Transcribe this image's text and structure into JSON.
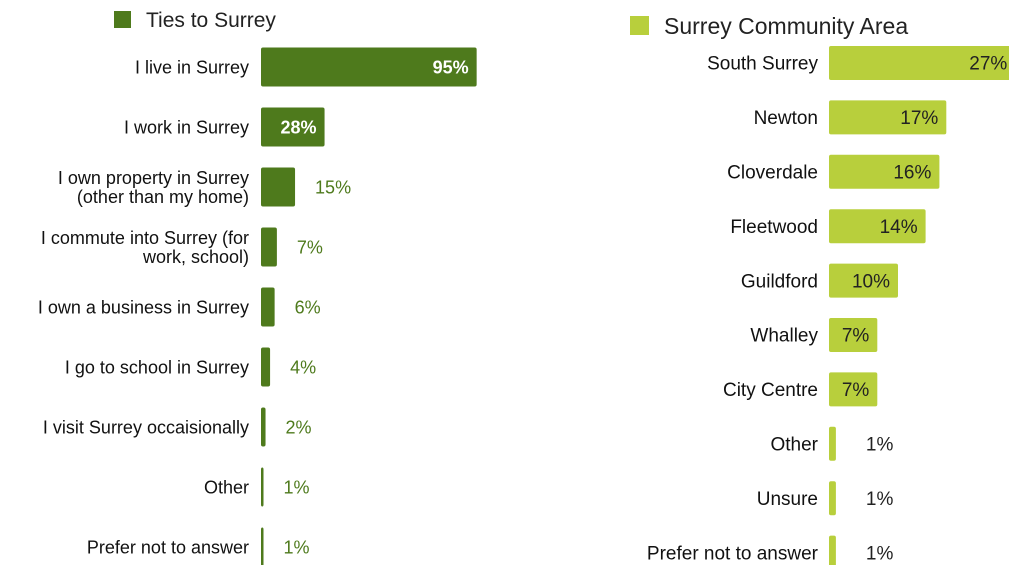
{
  "chart_data": [
    {
      "type": "bar",
      "orientation": "horizontal",
      "legend": {
        "label": "Ties to Surrey",
        "color": "#4e7a1c",
        "placement": "top"
      },
      "unit": "%",
      "xlim": [
        0,
        100
      ],
      "categories": [
        [
          "I live in Surrey"
        ],
        [
          "I work in Surrey"
        ],
        [
          "I own property in Surrey",
          "(other than my home)"
        ],
        [
          "I commute into Surrey (for",
          "work, school)"
        ],
        [
          "I own a business in Surrey"
        ],
        [
          "I go to school in Surrey"
        ],
        [
          "I visit Surrey occaisionally"
        ],
        [
          "Other"
        ],
        [
          "Prefer not to answer"
        ]
      ],
      "values": [
        95,
        28,
        15,
        7,
        6,
        4,
        2,
        1,
        1
      ],
      "data_labels": [
        "95%",
        "28%",
        "15%",
        "7%",
        "6%",
        "4%",
        "2%",
        "1%",
        "1%"
      ],
      "label_inside_color": "#ffffff",
      "label_outside_color": "#4e7a1c"
    },
    {
      "type": "bar",
      "orientation": "horizontal",
      "legend": {
        "label": "Surrey Community Area",
        "color": "#b8cf3c",
        "placement": "top"
      },
      "unit": "%",
      "xlim": [
        0,
        100
      ],
      "categories": [
        [
          "South Surrey"
        ],
        [
          "Newton"
        ],
        [
          "Cloverdale"
        ],
        [
          "Fleetwood"
        ],
        [
          "Guildford"
        ],
        [
          "Whalley"
        ],
        [
          "City Centre"
        ],
        [
          "Other"
        ],
        [
          "Unsure"
        ],
        [
          "Prefer not to answer"
        ]
      ],
      "values": [
        27,
        17,
        16,
        14,
        10,
        7,
        7,
        1,
        1,
        1
      ],
      "data_labels": [
        "27%",
        "17%",
        "16%",
        "14%",
        "10%",
        "7%",
        "7%",
        "1%",
        "1%",
        "1%"
      ],
      "label_inside_color": "#222222",
      "label_outside_color": "#222222"
    }
  ]
}
